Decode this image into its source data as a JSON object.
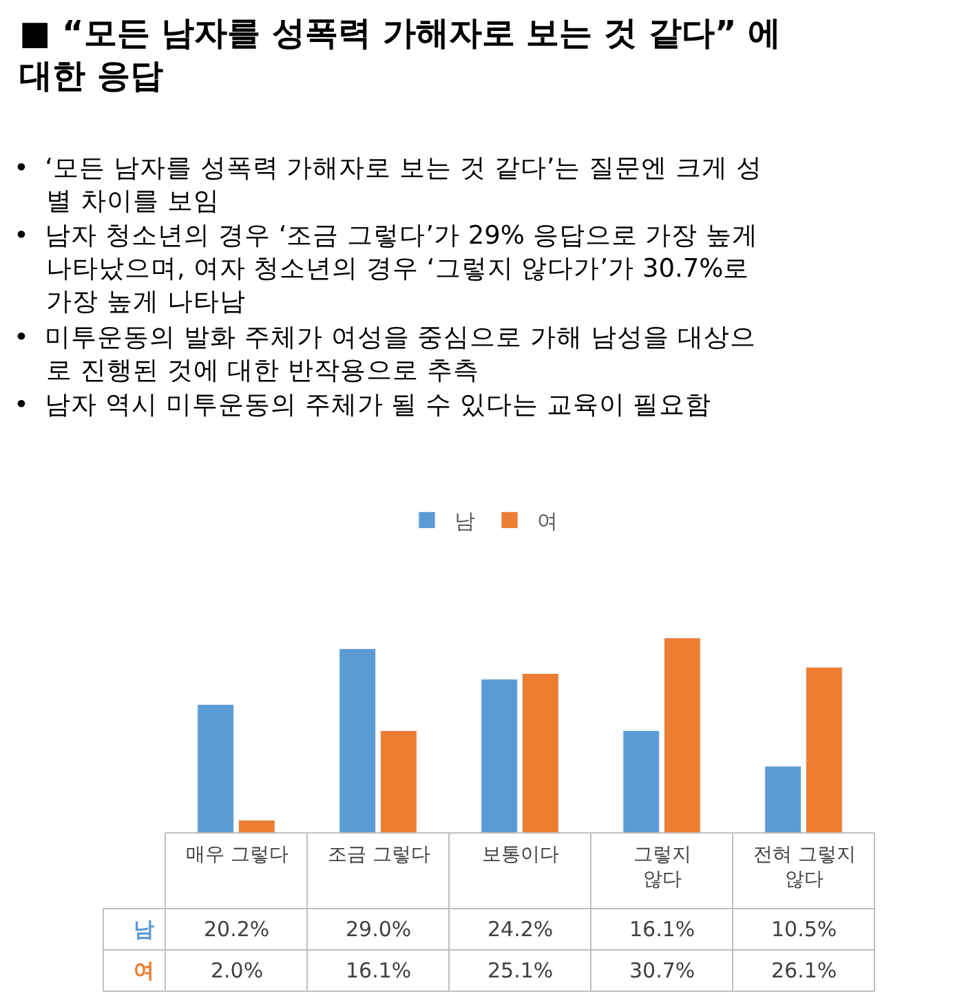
{
  "chart_data": {
    "type": "bar",
    "title": "■ “모든 남자를 성폭력 가해자로 보는 것 같다” 에\n대한 응답",
    "annotations": [
      "•  ‘모든 남자를 성폭력 가해자로 보는 것 같다’는 질문엔 크게 성\n    별 차이를 보임",
      "•  남자 청소년의 경우 ‘조금 그렇다’가 29% 응답으로 가장 높게\n    나타났으며, 여자 청소년의 경우 ‘그렇지 않다가’가 30.7%로\n    가장 높게 나타남",
      "•  미투운동의 발화 주체가 여성을 중심으로 가해 남성을 대상으\n    로 진행된 것에 대한 반작용으로 추측",
      "•  남자 역시 미투운동의 주체가 될 수 있다는 교육이 필요함"
    ],
    "categories": [
      "매우 그렇다",
      "조금 그렇다",
      "보통이다",
      "그렇지\n않다",
      "전혀 그렇지\n않다"
    ],
    "series": [
      {
        "name": "남",
        "color": "#5b9bd5",
        "values": [
          20.2,
          29.0,
          24.2,
          16.1,
          10.5
        ],
        "value_labels": [
          "20.2%",
          "29.0%",
          "24.2%",
          "16.1%",
          "10.5%"
        ]
      },
      {
        "name": "여",
        "color": "#ed7d31",
        "values": [
          2.0,
          16.1,
          25.1,
          30.7,
          26.1
        ],
        "value_labels": [
          "2.0%",
          "16.1%",
          "25.1%",
          "30.7%",
          "26.1%"
        ]
      }
    ],
    "ylim": [
      0,
      31
    ],
    "data_labels": true,
    "legend": "top"
  }
}
